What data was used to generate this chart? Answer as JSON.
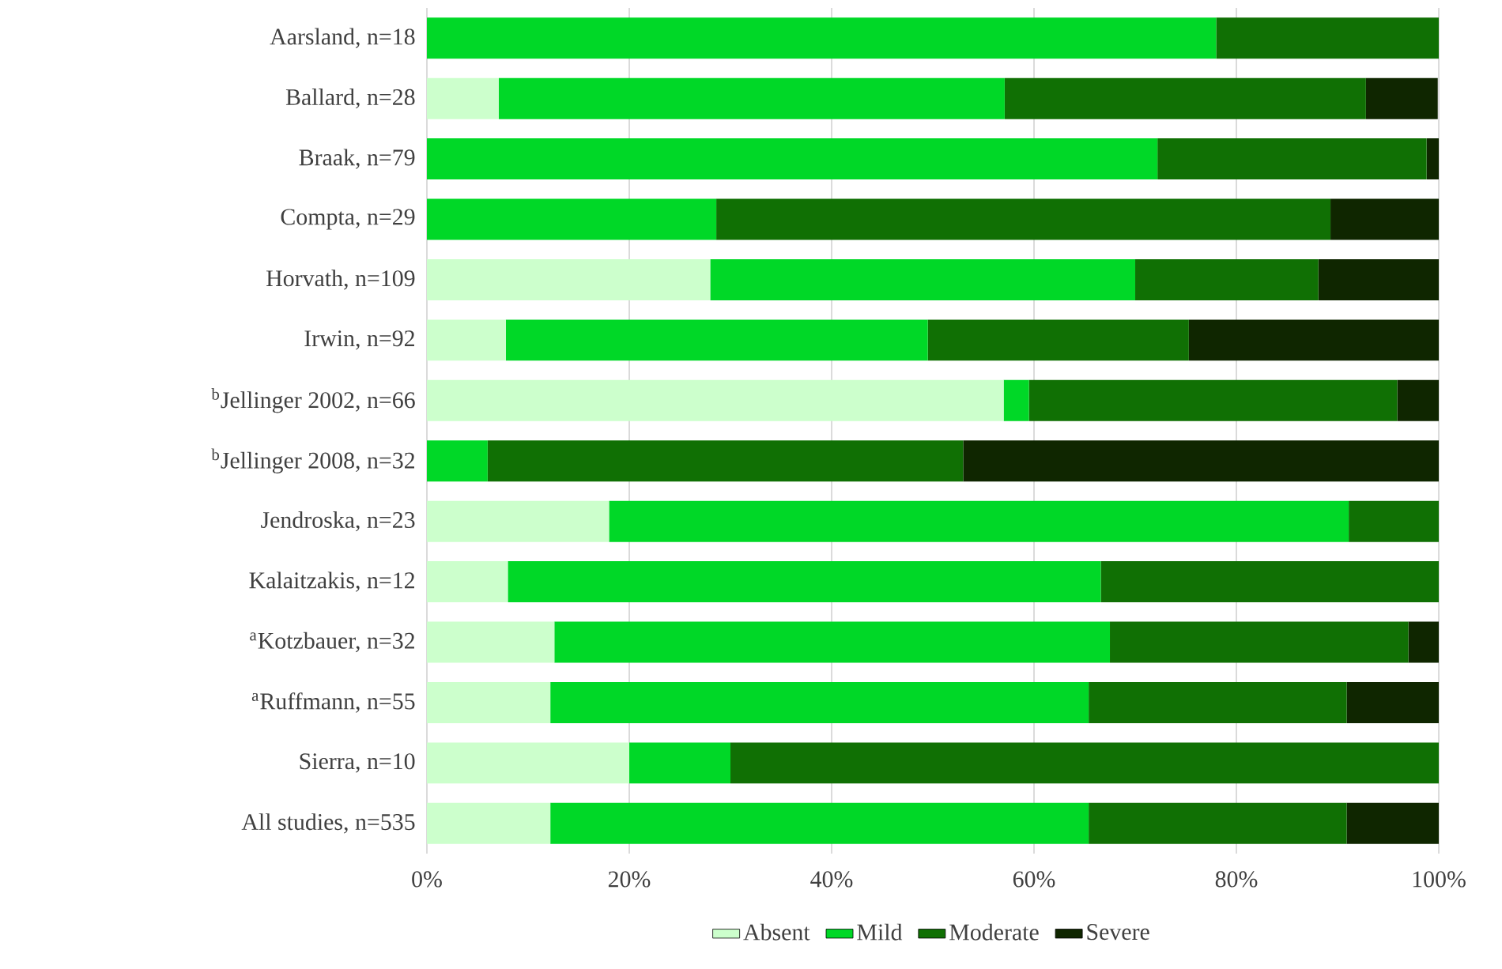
{
  "chart_data": {
    "type": "bar",
    "orientation": "horizontal",
    "stacked": true,
    "grid": "x",
    "legend": "bottom",
    "categories": [
      "Aarsland, n=18",
      "Ballard, n=28",
      "Braak, n=79",
      "Compta, n=29",
      "Horvath, n=109",
      "Irwin, n=92",
      "$^{b}$Jellinger 2002, n=66",
      "$^{b}$Jellinger 2008, n=32",
      "Jendroska, n=23",
      "Kalaitzakis, n=12",
      "$^{a}$Kotzbauer, n=32",
      "$^{a}$Ruffmann, n=55",
      "Sierra, n=10",
      "All studies, n=535"
    ],
    "series": [
      {
        "name": "Absent",
        "color": "#ccffcc",
        "values": [
          0,
          7.1,
          0,
          0,
          28.0,
          7.8,
          57.0,
          0,
          18.0,
          8.0,
          12.6,
          12.2,
          20.0,
          12.2
        ]
      },
      {
        "name": "Mild",
        "color": "#00d827",
        "values": [
          78.0,
          50.0,
          72.2,
          28.6,
          42.0,
          41.7,
          2.5,
          6.0,
          73.1,
          58.6,
          54.9,
          53.2,
          10.0,
          53.2
        ]
      },
      {
        "name": "Moderate",
        "color": "#107004",
        "values": [
          22.0,
          35.7,
          26.6,
          60.7,
          18.1,
          25.8,
          36.4,
          47.0,
          8.9,
          33.4,
          29.5,
          25.5,
          70.0,
          25.5
        ]
      },
      {
        "name": "Severe",
        "color": "#0f2600",
        "values": [
          0,
          7.1,
          1.3,
          10.7,
          11.9,
          24.7,
          4.1,
          47.0,
          0,
          0,
          3.0,
          9.1,
          0,
          9.1
        ]
      }
    ],
    "xlim": [
      0,
      100
    ],
    "xticks": [
      {
        "value": 0,
        "label": "0%"
      },
      {
        "value": 20,
        "label": "20%"
      },
      {
        "value": 40,
        "label": "40%"
      },
      {
        "value": 60,
        "label": "60%"
      },
      {
        "value": 80,
        "label": "80%"
      },
      {
        "value": 100,
        "label": "100%"
      }
    ]
  }
}
